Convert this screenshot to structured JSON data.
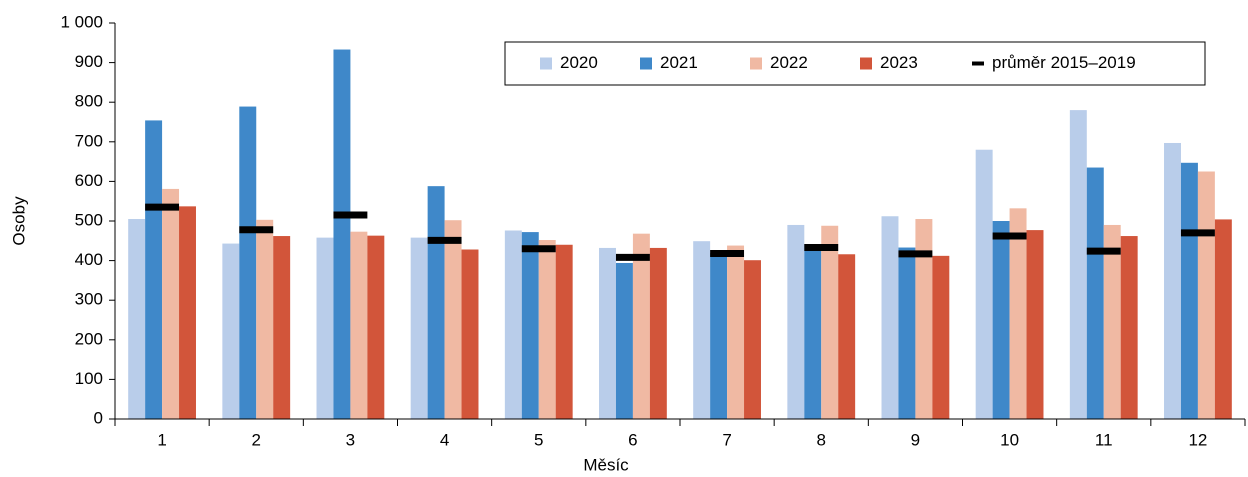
{
  "chart_data": {
    "type": "bar",
    "x_label": "Měsíc",
    "y_label": "Osoby",
    "categories": [
      "1",
      "2",
      "3",
      "4",
      "5",
      "6",
      "7",
      "8",
      "9",
      "10",
      "11",
      "12"
    ],
    "series": [
      {
        "name": "2020",
        "color": "#b9cdea",
        "style": "bar",
        "values": [
          505,
          443,
          458,
          458,
          476,
          432,
          449,
          490,
          512,
          680,
          780,
          697
        ]
      },
      {
        "name": "2021",
        "color": "#3f88c9",
        "style": "bar",
        "values": [
          754,
          789,
          933,
          588,
          472,
          394,
          419,
          441,
          433,
          500,
          635,
          647
        ]
      },
      {
        "name": "2022",
        "color": "#f0b9a3",
        "style": "bar",
        "values": [
          581,
          503,
          473,
          502,
          452,
          468,
          438,
          488,
          505,
          532,
          490,
          625
        ]
      },
      {
        "name": "2023",
        "color": "#d2553a",
        "style": "bar",
        "values": [
          537,
          462,
          463,
          428,
          440,
          432,
          401,
          416,
          412,
          477,
          462,
          504
        ]
      },
      {
        "name": "průměr 2015–2019",
        "color": "#000000",
        "style": "dash",
        "values": [
          535,
          478,
          515,
          451,
          430,
          408,
          418,
          433,
          417,
          462,
          424,
          470
        ]
      }
    ],
    "ylim": [
      0,
      1000
    ],
    "yticks": [
      0,
      100,
      200,
      300,
      400,
      500,
      600,
      700,
      800,
      900,
      {
        "value": 1000,
        "label": "1 000"
      }
    ],
    "legend": "top-right"
  }
}
